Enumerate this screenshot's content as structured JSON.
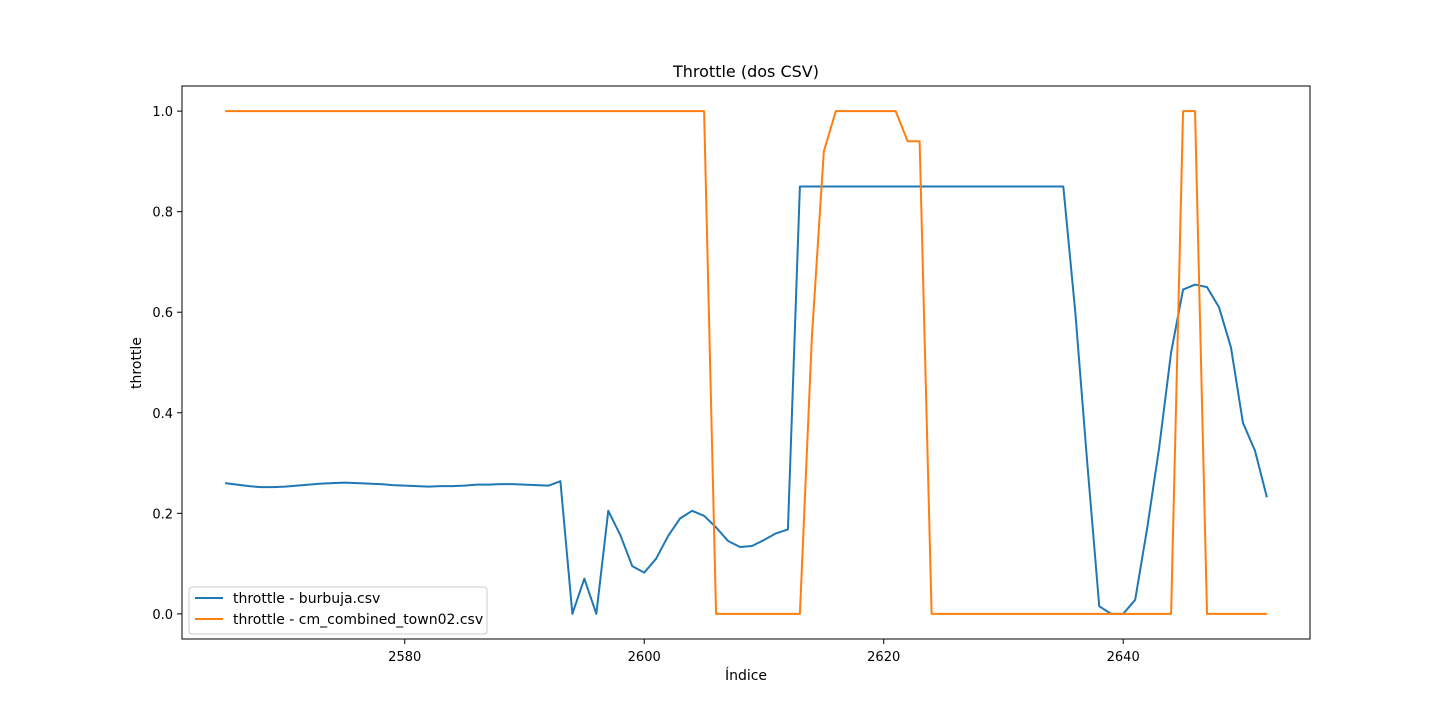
{
  "chart_data": {
    "type": "line",
    "title": "Throttle (dos CSV)",
    "xlabel": "Índice",
    "ylabel": "throttle",
    "xlim": [
      2561.4,
      2655.6
    ],
    "ylim": [
      -0.05,
      1.05
    ],
    "xticks": [
      2580,
      2600,
      2620,
      2640
    ],
    "xtick_labels": [
      "2580",
      "2600",
      "2620",
      "2640"
    ],
    "yticks": [
      0.0,
      0.2,
      0.4,
      0.6,
      0.8,
      1.0
    ],
    "ytick_labels": [
      "0.0",
      "0.2",
      "0.4",
      "0.6",
      "0.8",
      "1.0"
    ],
    "grid": false,
    "legend_position": "lower left",
    "x": [
      2565,
      2566,
      2567,
      2568,
      2569,
      2570,
      2571,
      2572,
      2573,
      2574,
      2575,
      2576,
      2577,
      2578,
      2579,
      2580,
      2581,
      2582,
      2583,
      2584,
      2585,
      2586,
      2587,
      2588,
      2589,
      2590,
      2591,
      2592,
      2593,
      2594,
      2595,
      2596,
      2597,
      2598,
      2599,
      2600,
      2601,
      2602,
      2603,
      2604,
      2605,
      2606,
      2607,
      2608,
      2609,
      2610,
      2611,
      2612,
      2613,
      2614,
      2615,
      2616,
      2617,
      2618,
      2619,
      2620,
      2621,
      2622,
      2623,
      2624,
      2625,
      2626,
      2627,
      2628,
      2629,
      2630,
      2631,
      2632,
      2633,
      2634,
      2635,
      2636,
      2637,
      2638,
      2639,
      2640,
      2641,
      2642,
      2643,
      2644,
      2645,
      2646,
      2647,
      2648,
      2649,
      2650,
      2651,
      2652
    ],
    "series": [
      {
        "name": "throttle - burbuja.csv",
        "color": "#1f77b4",
        "values": [
          0.26,
          0.257,
          0.254,
          0.252,
          0.252,
          0.253,
          0.255,
          0.257,
          0.259,
          0.26,
          0.261,
          0.26,
          0.259,
          0.258,
          0.256,
          0.255,
          0.254,
          0.253,
          0.254,
          0.254,
          0.255,
          0.257,
          0.257,
          0.258,
          0.258,
          0.257,
          0.256,
          0.255,
          0.264,
          0.0,
          0.07,
          0.0,
          0.205,
          0.157,
          0.095,
          0.082,
          0.11,
          0.155,
          0.19,
          0.205,
          0.195,
          0.172,
          0.145,
          0.133,
          0.135,
          0.147,
          0.16,
          0.168,
          0.85,
          0.85,
          0.85,
          0.85,
          0.85,
          0.85,
          0.85,
          0.85,
          0.85,
          0.85,
          0.85,
          0.85,
          0.85,
          0.85,
          0.85,
          0.85,
          0.85,
          0.85,
          0.85,
          0.85,
          0.85,
          0.85,
          0.85,
          0.6,
          0.3,
          0.015,
          0.0,
          0.0,
          0.028,
          0.17,
          0.33,
          0.52,
          0.645,
          0.655,
          0.65,
          0.61,
          0.53,
          0.38,
          0.325,
          0.232
        ]
      },
      {
        "name": "throttle - cm_combined_town02.csv",
        "color": "#ff7f0e",
        "values": [
          1.0,
          1.0,
          1.0,
          1.0,
          1.0,
          1.0,
          1.0,
          1.0,
          1.0,
          1.0,
          1.0,
          1.0,
          1.0,
          1.0,
          1.0,
          1.0,
          1.0,
          1.0,
          1.0,
          1.0,
          1.0,
          1.0,
          1.0,
          1.0,
          1.0,
          1.0,
          1.0,
          1.0,
          1.0,
          1.0,
          1.0,
          1.0,
          1.0,
          1.0,
          1.0,
          1.0,
          1.0,
          1.0,
          1.0,
          1.0,
          1.0,
          0.0,
          0.0,
          0.0,
          0.0,
          0.0,
          0.0,
          0.0,
          0.0,
          0.55,
          0.92,
          1.0,
          1.0,
          1.0,
          1.0,
          1.0,
          1.0,
          0.94,
          0.94,
          0.0,
          0.0,
          0.0,
          0.0,
          0.0,
          0.0,
          0.0,
          0.0,
          0.0,
          0.0,
          0.0,
          0.0,
          0.0,
          0.0,
          0.0,
          0.0,
          0.0,
          0.0,
          0.0,
          0.0,
          0.0,
          1.0,
          1.0,
          0.0,
          0.0,
          0.0,
          0.0,
          0.0,
          0.0
        ]
      }
    ]
  }
}
